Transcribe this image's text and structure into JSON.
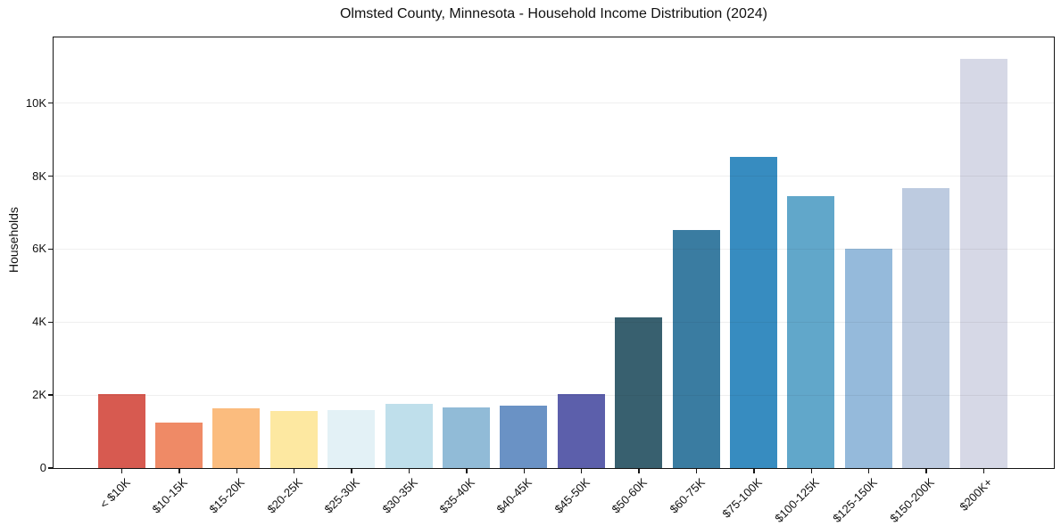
{
  "title": "Olmsted County, Minnesota - Household Income Distribution (2024)",
  "chart_data": {
    "type": "bar",
    "title": "Olmsted County, Minnesota - Household Income Distribution (2024)",
    "xlabel": "",
    "ylabel": "Households",
    "categories": [
      "< $10K",
      "$10-15K",
      "$15-20K",
      "$20-25K",
      "$25-30K",
      "$30-35K",
      "$35-40K",
      "$40-45K",
      "$45-50K",
      "$50-60K",
      "$60-75K",
      "$75-100K",
      "$100-125K",
      "$125-150K",
      "$150-200K",
      "$200K+"
    ],
    "values": [
      2020,
      1230,
      1620,
      1560,
      1580,
      1750,
      1660,
      1710,
      2010,
      4110,
      6500,
      8520,
      7430,
      6010,
      7670,
      11210
    ],
    "bar_colors": [
      "#d75a50",
      "#ef8a66",
      "#fbbc7e",
      "#fde8a1",
      "#e3f1f6",
      "#bfdfeb",
      "#91bbd7",
      "#6a92c5",
      "#5c5fab",
      "#38606f",
      "#3a7ca1",
      "#378cc0",
      "#61a7ca",
      "#95badb",
      "#bdcbe0",
      "#d6d8e6"
    ],
    "y_tick_values": [
      0,
      2000,
      4000,
      6000,
      8000,
      10000
    ],
    "y_tick_labels": [
      "0",
      "2K",
      "4K",
      "6K",
      "8K",
      "10K"
    ],
    "ylim": [
      0,
      11800
    ],
    "grid": "horizontal-only",
    "legend": "none",
    "axis_color": "#141414",
    "text_color": "#111111"
  }
}
